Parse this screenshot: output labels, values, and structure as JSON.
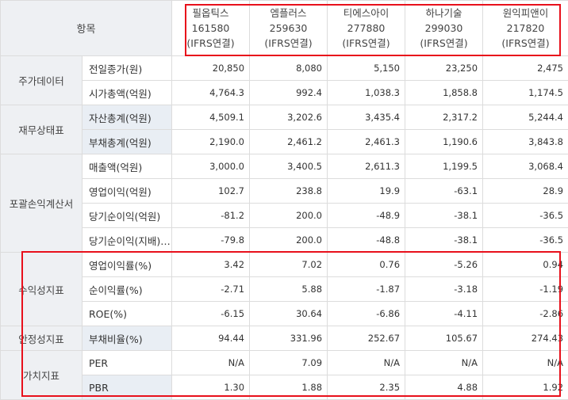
{
  "header": {
    "item_label": "항목",
    "companies": [
      {
        "name": "필옵틱스",
        "code": "161580",
        "basis": "(IFRS연결)"
      },
      {
        "name": "엠플러스",
        "code": "259630",
        "basis": "(IFRS연결)"
      },
      {
        "name": "티에스아이",
        "code": "277880",
        "basis": "(IFRS연결)"
      },
      {
        "name": "하나기술",
        "code": "299030",
        "basis": "(IFRS연결)"
      },
      {
        "name": "원익피앤이",
        "code": "217820",
        "basis": "(IFRS연결)"
      }
    ]
  },
  "categories": {
    "price": "주가데이터",
    "balance": "재무상태표",
    "income": "포괄손익계산서",
    "profitability": "수익성지표",
    "stability": "안정성지표",
    "valuation": "가치지표"
  },
  "rows": [
    {
      "label": "전일종가(원)",
      "values": [
        "20,850",
        "8,080",
        "5,150",
        "23,250",
        "2,475"
      ]
    },
    {
      "label": "시가총액(억원)",
      "values": [
        "4,764.3",
        "992.4",
        "1,038.3",
        "1,858.8",
        "1,174.5"
      ]
    },
    {
      "label": "자산총계(억원)",
      "values": [
        "4,509.1",
        "3,202.6",
        "3,435.4",
        "2,317.2",
        "5,244.4"
      ]
    },
    {
      "label": "부채총계(억원)",
      "values": [
        "2,190.0",
        "2,461.2",
        "2,461.3",
        "1,190.6",
        "3,843.8"
      ]
    },
    {
      "label": "매출액(억원)",
      "values": [
        "3,000.0",
        "3,400.5",
        "2,611.3",
        "1,199.5",
        "3,068.4"
      ]
    },
    {
      "label": "영업이익(억원)",
      "values": [
        "102.7",
        "238.8",
        "19.9",
        "-63.1",
        "28.9"
      ]
    },
    {
      "label": "당기순이익(억원)",
      "values": [
        "-81.2",
        "200.0",
        "-48.9",
        "-38.1",
        "-36.5"
      ]
    },
    {
      "label": "당기순이익(지배)…",
      "values": [
        "-79.8",
        "200.0",
        "-48.8",
        "-38.1",
        "-36.5"
      ]
    },
    {
      "label": "영업이익률(%)",
      "values": [
        "3.42",
        "7.02",
        "0.76",
        "-5.26",
        "0.94"
      ]
    },
    {
      "label": "순이익률(%)",
      "values": [
        "-2.71",
        "5.88",
        "-1.87",
        "-3.18",
        "-1.19"
      ]
    },
    {
      "label": "ROE(%)",
      "values": [
        "-6.15",
        "30.64",
        "-6.86",
        "-4.11",
        "-2.86"
      ]
    },
    {
      "label": "부채비율(%)",
      "values": [
        "94.44",
        "331.96",
        "252.67",
        "105.67",
        "274.43"
      ]
    },
    {
      "label": "PER",
      "values": [
        "N/A",
        "7.09",
        "N/A",
        "N/A",
        "N/A"
      ]
    },
    {
      "label": "PBR",
      "values": [
        "1.30",
        "1.88",
        "2.35",
        "4.88",
        "1.92"
      ]
    }
  ],
  "highlight_color": "#e8101b"
}
